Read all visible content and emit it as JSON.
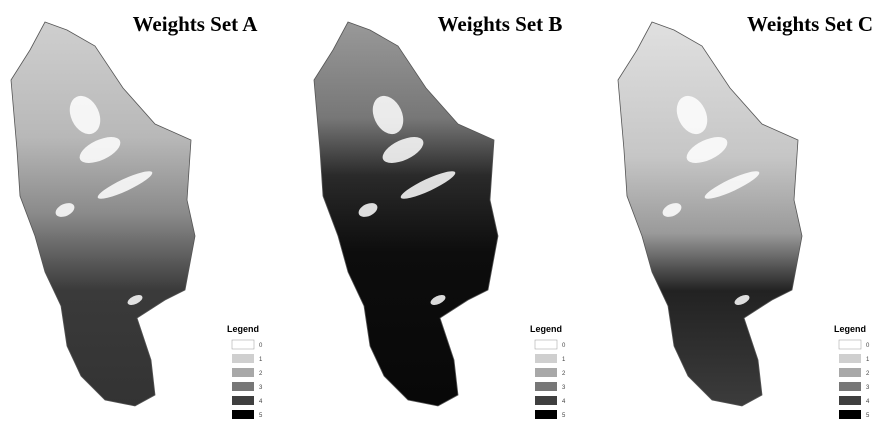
{
  "panels": [
    {
      "title": "Weights Set A",
      "legend": {
        "title": "Legend",
        "labels": [
          "0",
          "1",
          "2",
          "3",
          "4",
          "5"
        ]
      }
    },
    {
      "title": "Weights Set B",
      "legend": {
        "title": "Legend",
        "labels": [
          "0",
          "1",
          "2",
          "3",
          "4",
          "5"
        ]
      }
    },
    {
      "title": "Weights Set C",
      "legend": {
        "title": "Legend",
        "labels": [
          "0",
          "1",
          "2",
          "3",
          "4",
          "5"
        ]
      }
    }
  ]
}
